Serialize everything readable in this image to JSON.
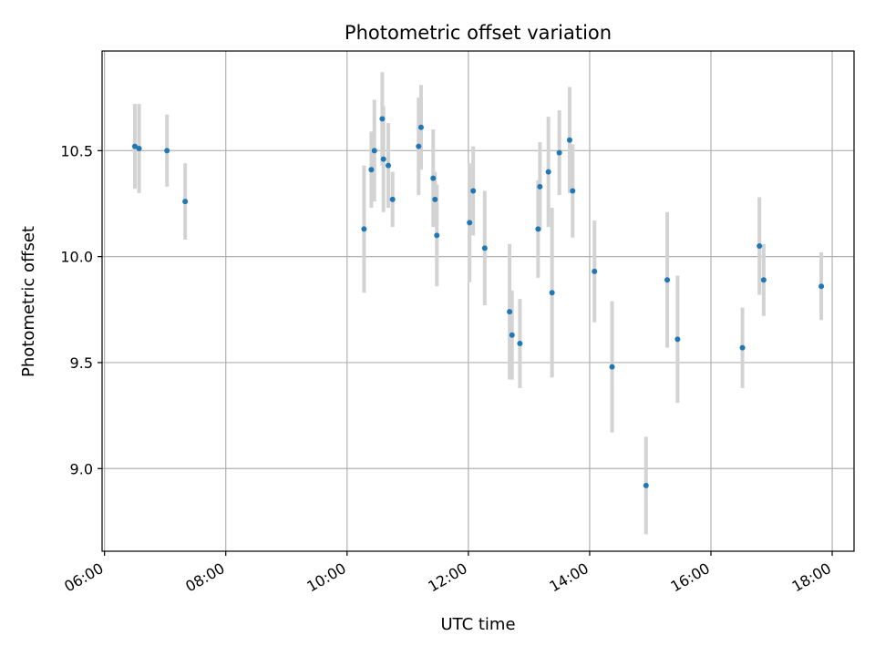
{
  "chart_data": {
    "type": "scatter",
    "title": "Photometric offset variation",
    "xlabel": "UTC time",
    "ylabel": "Photometric offset",
    "x_unit": "hours (UTC)",
    "xlim": [
      5.96,
      18.36
    ],
    "ylim": [
      8.61,
      10.97
    ],
    "xticks": [
      {
        "value": 6,
        "label": "06:00"
      },
      {
        "value": 8,
        "label": "08:00"
      },
      {
        "value": 10,
        "label": "10:00"
      },
      {
        "value": 12,
        "label": "12:00"
      },
      {
        "value": 14,
        "label": "14:00"
      },
      {
        "value": 16,
        "label": "16:00"
      },
      {
        "value": 18,
        "label": "18:00"
      }
    ],
    "yticks": [
      {
        "value": 9.0,
        "label": "9.0"
      },
      {
        "value": 9.5,
        "label": "9.5"
      },
      {
        "value": 10.0,
        "label": "10.0"
      },
      {
        "value": 10.5,
        "label": "10.5"
      }
    ],
    "grid": true,
    "legend": "none",
    "series": [
      {
        "marker_color": "#1f77b4",
        "errorbar_color": "#d3d3d3",
        "points": [
          {
            "x": 6.5,
            "y": 10.52,
            "err": 0.2
          },
          {
            "x": 6.57,
            "y": 10.51,
            "err": 0.21
          },
          {
            "x": 7.03,
            "y": 10.5,
            "err": 0.17
          },
          {
            "x": 7.33,
            "y": 10.26,
            "err": 0.18
          },
          {
            "x": 10.28,
            "y": 10.13,
            "err": 0.3
          },
          {
            "x": 10.4,
            "y": 10.41,
            "err": 0.18
          },
          {
            "x": 10.45,
            "y": 10.5,
            "err": 0.24
          },
          {
            "x": 10.58,
            "y": 10.65,
            "err": 0.22
          },
          {
            "x": 10.6,
            "y": 10.46,
            "err": 0.25
          },
          {
            "x": 10.68,
            "y": 10.43,
            "err": 0.2
          },
          {
            "x": 10.75,
            "y": 10.27,
            "err": 0.13
          },
          {
            "x": 11.18,
            "y": 10.52,
            "err": 0.23
          },
          {
            "x": 11.22,
            "y": 10.61,
            "err": 0.2
          },
          {
            "x": 11.42,
            "y": 10.37,
            "err": 0.23
          },
          {
            "x": 11.45,
            "y": 10.27,
            "err": 0.13
          },
          {
            "x": 11.48,
            "y": 10.1,
            "err": 0.24
          },
          {
            "x": 12.02,
            "y": 10.16,
            "err": 0.28
          },
          {
            "x": 12.08,
            "y": 10.31,
            "err": 0.21
          },
          {
            "x": 12.27,
            "y": 10.04,
            "err": 0.27
          },
          {
            "x": 12.68,
            "y": 9.74,
            "err": 0.32
          },
          {
            "x": 12.72,
            "y": 9.63,
            "err": 0.21
          },
          {
            "x": 12.85,
            "y": 9.59,
            "err": 0.21
          },
          {
            "x": 13.15,
            "y": 10.13,
            "err": 0.23
          },
          {
            "x": 13.18,
            "y": 10.33,
            "err": 0.21
          },
          {
            "x": 13.32,
            "y": 10.4,
            "err": 0.26
          },
          {
            "x": 13.38,
            "y": 9.83,
            "err": 0.4
          },
          {
            "x": 13.5,
            "y": 10.49,
            "err": 0.2
          },
          {
            "x": 13.67,
            "y": 10.55,
            "err": 0.25
          },
          {
            "x": 13.72,
            "y": 10.31,
            "err": 0.22
          },
          {
            "x": 14.08,
            "y": 9.93,
            "err": 0.24
          },
          {
            "x": 14.37,
            "y": 9.48,
            "err": 0.31
          },
          {
            "x": 14.93,
            "y": 8.92,
            "err": 0.23
          },
          {
            "x": 15.28,
            "y": 9.89,
            "err": 0.32
          },
          {
            "x": 15.45,
            "y": 9.61,
            "err": 0.3
          },
          {
            "x": 16.52,
            "y": 9.57,
            "err": 0.19
          },
          {
            "x": 16.8,
            "y": 10.05,
            "err": 0.23
          },
          {
            "x": 16.87,
            "y": 9.89,
            "err": 0.17
          },
          {
            "x": 17.82,
            "y": 9.86,
            "err": 0.16
          }
        ]
      }
    ]
  }
}
